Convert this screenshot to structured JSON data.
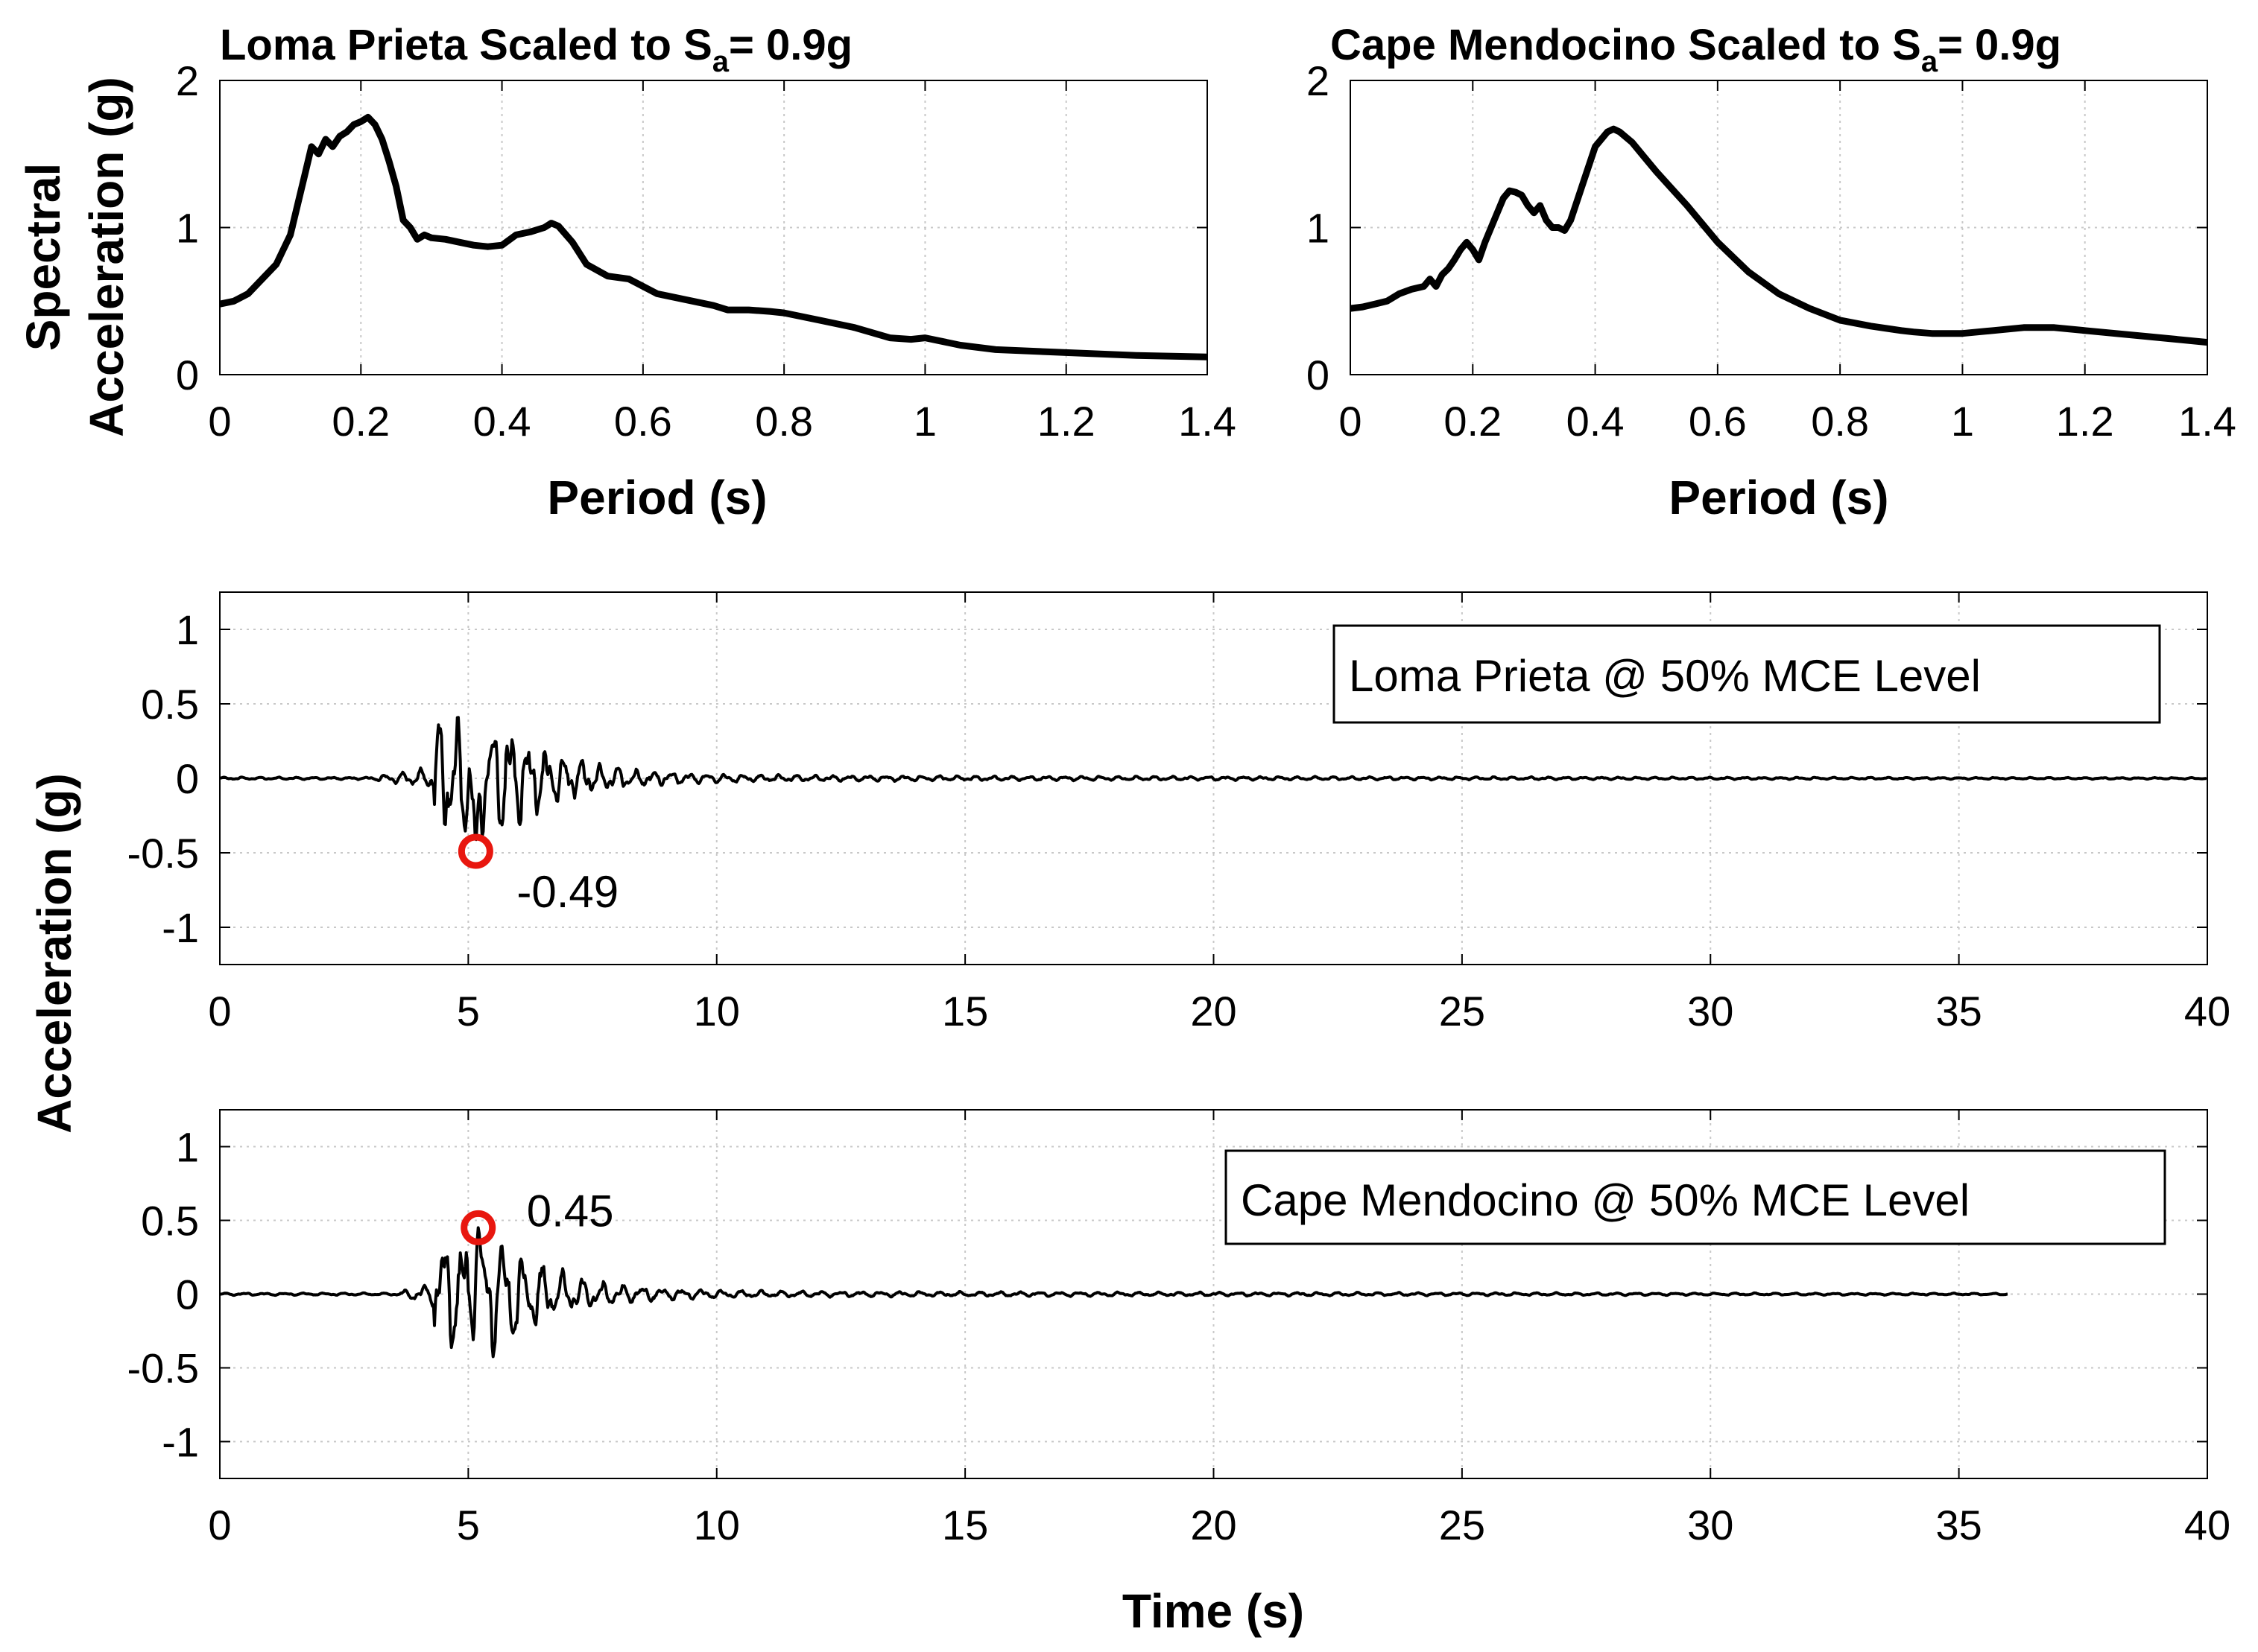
{
  "chart_data": [
    {
      "id": "lp_spectrum",
      "type": "line",
      "title_main": "Loma Prieta Scaled to S",
      "title_sub": "a",
      "title_tail": "= 0.9g",
      "xlabel": "Period (s)",
      "ylabel_line1": "Spectral",
      "ylabel_line2": "Acceleration (g)",
      "xlim": [
        0,
        1.4
      ],
      "ylim": [
        0,
        2
      ],
      "xticks": [
        0,
        0.2,
        0.4,
        0.6,
        0.8,
        1,
        1.2,
        1.4
      ],
      "xtick_labels": [
        "0",
        "0.2",
        "0.4",
        "0.6",
        "0.8",
        "1",
        "1.2",
        "1.4"
      ],
      "yticks": [
        0,
        1,
        2
      ],
      "ytick_labels": [
        "0",
        "1",
        "2"
      ],
      "grid": "dotted",
      "x": [
        0,
        0.02,
        0.04,
        0.06,
        0.08,
        0.1,
        0.11,
        0.12,
        0.13,
        0.14,
        0.15,
        0.16,
        0.17,
        0.18,
        0.19,
        0.2,
        0.21,
        0.22,
        0.23,
        0.24,
        0.25,
        0.26,
        0.27,
        0.28,
        0.29,
        0.3,
        0.32,
        0.34,
        0.36,
        0.38,
        0.4,
        0.42,
        0.44,
        0.46,
        0.47,
        0.48,
        0.5,
        0.52,
        0.55,
        0.58,
        0.6,
        0.62,
        0.65,
        0.7,
        0.72,
        0.75,
        0.78,
        0.8,
        0.85,
        0.9,
        0.95,
        0.98,
        1.0,
        1.05,
        1.1,
        1.2,
        1.3,
        1.4
      ],
      "y": [
        0.48,
        0.5,
        0.55,
        0.65,
        0.75,
        0.95,
        1.15,
        1.35,
        1.55,
        1.5,
        1.6,
        1.55,
        1.62,
        1.65,
        1.7,
        1.72,
        1.75,
        1.7,
        1.6,
        1.45,
        1.28,
        1.05,
        1.0,
        0.92,
        0.95,
        0.93,
        0.92,
        0.9,
        0.88,
        0.87,
        0.88,
        0.95,
        0.97,
        1.0,
        1.03,
        1.01,
        0.9,
        0.75,
        0.67,
        0.65,
        0.6,
        0.55,
        0.52,
        0.47,
        0.44,
        0.44,
        0.43,
        0.42,
        0.37,
        0.32,
        0.25,
        0.24,
        0.25,
        0.2,
        0.17,
        0.15,
        0.13,
        0.12
      ]
    },
    {
      "id": "cm_spectrum",
      "type": "line",
      "title_main": "Cape Mendocino Scaled to S",
      "title_sub": "a",
      "title_tail": "= 0.9g",
      "xlabel": "Period (s)",
      "xlim": [
        0,
        1.4
      ],
      "ylim": [
        0,
        2
      ],
      "xticks": [
        0,
        0.2,
        0.4,
        0.6,
        0.8,
        1,
        1.2,
        1.4
      ],
      "xtick_labels": [
        "0",
        "0.2",
        "0.4",
        "0.6",
        "0.8",
        "1",
        "1.2",
        "1.4"
      ],
      "yticks": [
        0,
        1,
        2
      ],
      "ytick_labels": [
        "0",
        "1",
        "2"
      ],
      "grid": "dotted",
      "x": [
        0,
        0.02,
        0.04,
        0.06,
        0.08,
        0.1,
        0.12,
        0.13,
        0.14,
        0.15,
        0.16,
        0.17,
        0.18,
        0.19,
        0.2,
        0.21,
        0.22,
        0.23,
        0.24,
        0.25,
        0.26,
        0.27,
        0.28,
        0.29,
        0.3,
        0.31,
        0.32,
        0.33,
        0.34,
        0.35,
        0.36,
        0.38,
        0.4,
        0.42,
        0.43,
        0.44,
        0.46,
        0.48,
        0.5,
        0.55,
        0.6,
        0.65,
        0.7,
        0.75,
        0.8,
        0.85,
        0.9,
        0.92,
        0.95,
        1.0,
        1.05,
        1.1,
        1.15,
        1.2,
        1.3,
        1.4
      ],
      "y": [
        0.45,
        0.46,
        0.48,
        0.5,
        0.55,
        0.58,
        0.6,
        0.65,
        0.6,
        0.68,
        0.72,
        0.78,
        0.85,
        0.9,
        0.85,
        0.78,
        0.9,
        1.0,
        1.1,
        1.2,
        1.25,
        1.24,
        1.22,
        1.15,
        1.1,
        1.15,
        1.05,
        1.0,
        1.0,
        0.98,
        1.05,
        1.3,
        1.55,
        1.65,
        1.67,
        1.65,
        1.58,
        1.48,
        1.38,
        1.15,
        0.9,
        0.7,
        0.55,
        0.45,
        0.37,
        0.33,
        0.3,
        0.29,
        0.28,
        0.28,
        0.3,
        0.32,
        0.32,
        0.3,
        0.26,
        0.22
      ]
    },
    {
      "id": "lp_time",
      "type": "line",
      "ylabel": "Acceleration (g)",
      "xlim": [
        0,
        40
      ],
      "ylim": [
        -1.25,
        1.25
      ],
      "xticks": [
        0,
        5,
        10,
        15,
        20,
        25,
        30,
        35,
        40
      ],
      "xtick_labels": [
        "0",
        "5",
        "10",
        "15",
        "20",
        "25",
        "30",
        "35",
        "40"
      ],
      "yticks": [
        1,
        0.5,
        0,
        -0.5,
        -1
      ],
      "ytick_labels": [
        "1",
        "0.5",
        "0",
        "-0.5",
        "-1"
      ],
      "grid": "dotted",
      "legend": "Loma Prieta @ 50% MCE Level",
      "legend_position": "top-right",
      "signal": {
        "duration": 40,
        "peak_time": 5,
        "pre_noise_start": 3.0,
        "decay": 0.85,
        "seed": 7,
        "dominant_period": 0.36
      },
      "peak_marker": {
        "t": 5.15,
        "value": -0.49,
        "label": "-0.49",
        "color": "#e8170f"
      }
    },
    {
      "id": "cm_time",
      "type": "line",
      "xlabel": "Time (s)",
      "xlim": [
        0,
        40
      ],
      "ylim": [
        -1.25,
        1.25
      ],
      "xticks": [
        0,
        5,
        10,
        15,
        20,
        25,
        30,
        35,
        40
      ],
      "xtick_labels": [
        "0",
        "5",
        "10",
        "15",
        "20",
        "25",
        "30",
        "35",
        "40"
      ],
      "yticks": [
        1,
        0.5,
        0,
        -0.5,
        -1
      ],
      "ytick_labels": [
        "1",
        "0.5",
        "0",
        "-0.5",
        "-1"
      ],
      "grid": "dotted",
      "legend": "Cape Mendocino @ 50% MCE Level",
      "legend_position": "top-right",
      "signal": {
        "duration": 36,
        "peak_time": 5,
        "pre_noise_start": 3.5,
        "decay": 0.9,
        "seed": 19,
        "dominant_period": 0.4
      },
      "peak_marker": {
        "t": 5.2,
        "value": 0.45,
        "label": "0.45",
        "color": "#e8170f"
      }
    }
  ],
  "colors": {
    "line": "#000000",
    "marker": "#e8170f",
    "grid": "#bdbdbd"
  }
}
